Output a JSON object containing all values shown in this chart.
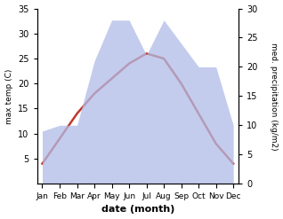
{
  "months": [
    "Jan",
    "Feb",
    "Mar",
    "Apr",
    "May",
    "Jun",
    "Jul",
    "Aug",
    "Sep",
    "Oct",
    "Nov",
    "Dec"
  ],
  "temperature": [
    4,
    9,
    14,
    18,
    21,
    24,
    26,
    25,
    20,
    14,
    8,
    4
  ],
  "precipitation": [
    9,
    10,
    10,
    21,
    28,
    28,
    22,
    28,
    24,
    20,
    20,
    10
  ],
  "temp_ylim": [
    0,
    35
  ],
  "precip_ylim": [
    0,
    30
  ],
  "temp_color": "#c0392b",
  "precip_fill_color": "#b0bce8",
  "precip_fill_alpha": 0.75,
  "xlabel": "date (month)",
  "ylabel_left": "max temp (C)",
  "ylabel_right": "med. precipitation (kg/m2)",
  "title": "",
  "fig_width": 3.18,
  "fig_height": 2.47,
  "dpi": 100
}
